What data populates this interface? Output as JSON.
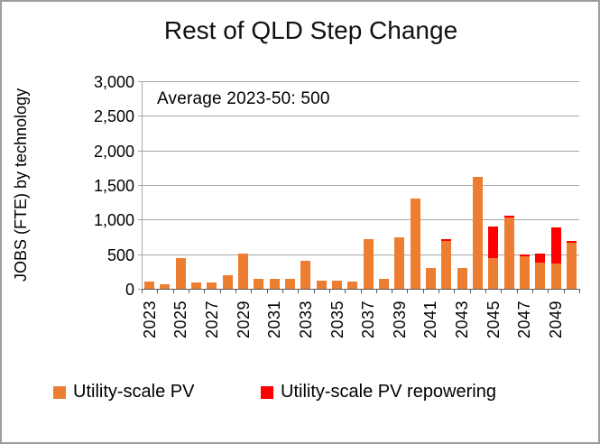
{
  "title": "Rest of QLD Step Change",
  "annotation": "Average 2023-50: 500",
  "y_axis": {
    "label": "JOBS (FTE) by technology"
  },
  "legend": {
    "items": [
      {
        "label": "Utility-scale PV",
        "color": "#ED7D31"
      },
      {
        "label": "Utility-scale PV repowering",
        "color": "#FF0000"
      }
    ]
  },
  "colors": {
    "pv": "#ED7D31",
    "repowering": "#FF0000",
    "gridline": "#a6a6a6",
    "axis": "#595959",
    "frame": "#9e9e9e"
  },
  "chart_data": {
    "type": "bar",
    "stacked": true,
    "title": "Rest of QLD Step Change",
    "ylabel": "JOBS (FTE) by technology",
    "xlabel": "",
    "ylim": [
      0,
      3000
    ],
    "ytick_step": 500,
    "y_tick_labels": [
      "0",
      "500",
      "1,000",
      "1,500",
      "2,000",
      "2,500",
      "3,000"
    ],
    "grid": true,
    "legend_position": "bottom",
    "annotation": "Average 2023-50: 500",
    "categories": [
      2023,
      2024,
      2025,
      2026,
      2027,
      2028,
      2029,
      2030,
      2031,
      2032,
      2033,
      2034,
      2035,
      2036,
      2037,
      2038,
      2039,
      2040,
      2041,
      2042,
      2043,
      2044,
      2045,
      2046,
      2047,
      2048,
      2049,
      2050
    ],
    "x_tick_labels": [
      "2023",
      "2025",
      "2027",
      "2029",
      "2031",
      "2033",
      "2035",
      "2037",
      "2039",
      "2041",
      "2043",
      "2045",
      "2047",
      "2049"
    ],
    "series": [
      {
        "name": "Utility-scale PV",
        "color": "#ED7D31",
        "values": [
          100,
          60,
          450,
          90,
          90,
          190,
          510,
          140,
          140,
          140,
          400,
          120,
          120,
          100,
          720,
          140,
          750,
          1300,
          300,
          690,
          300,
          1620,
          450,
          1030,
          465,
          380,
          370,
          665
        ]
      },
      {
        "name": "Utility-scale PV repowering",
        "color": "#FF0000",
        "values": [
          0,
          0,
          0,
          0,
          0,
          0,
          0,
          0,
          0,
          0,
          0,
          0,
          0,
          0,
          0,
          0,
          0,
          0,
          0,
          30,
          0,
          0,
          450,
          25,
          25,
          130,
          520,
          25
        ]
      }
    ]
  }
}
